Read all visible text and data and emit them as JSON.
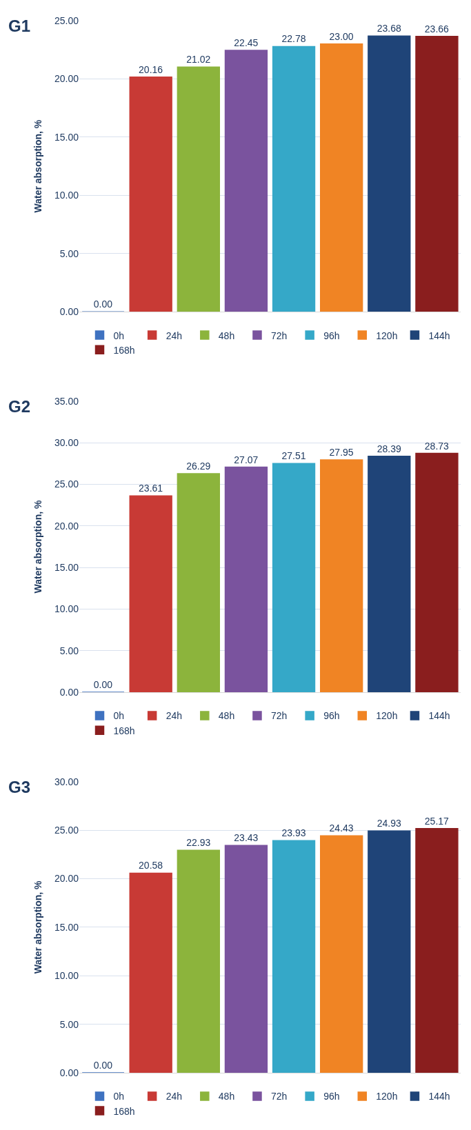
{
  "chart_data": [
    {
      "type": "bar",
      "title": "G1",
      "ylabel": "Water absorption, %",
      "categories": [
        null
      ],
      "ylim": [
        0,
        25
      ],
      "yticks": [
        {
          "value": 0,
          "label": "0.00"
        },
        {
          "value": 5,
          "label": "5.00"
        },
        {
          "value": 10,
          "label": "10.00"
        },
        {
          "value": 15,
          "label": "15.00"
        },
        {
          "value": 20,
          "label": "20.00"
        },
        {
          "value": 25,
          "label": "25.00"
        }
      ],
      "grid": "y",
      "legend": "bottom",
      "tick_labels": "y",
      "series": [
        {
          "name": "0h",
          "color": "#3f72c0",
          "values": [
            0.0
          ],
          "value_labels": [
            "0.00"
          ]
        },
        {
          "name": "24h",
          "color": "#c83a35",
          "values": [
            20.16
          ],
          "value_labels": [
            "20.16"
          ]
        },
        {
          "name": "48h",
          "color": "#8cb43c",
          "values": [
            21.02
          ],
          "value_labels": [
            "21.02"
          ]
        },
        {
          "name": "72h",
          "color": "#7a539e",
          "values": [
            22.45
          ],
          "value_labels": [
            "22.45"
          ]
        },
        {
          "name": "96h",
          "color": "#35a8c8",
          "values": [
            22.78
          ],
          "value_labels": [
            "22.78"
          ]
        },
        {
          "name": "120h",
          "color": "#f08424",
          "values": [
            23.0
          ],
          "value_labels": [
            "23.00"
          ]
        },
        {
          "name": "144h",
          "color": "#1f4478",
          "values": [
            23.68
          ],
          "value_labels": [
            "23.68"
          ]
        },
        {
          "name": "168h",
          "color": "#8a1e1e",
          "values": [
            23.66
          ],
          "value_labels": [
            "23.66"
          ]
        }
      ]
    },
    {
      "type": "bar",
      "title": "G2",
      "ylabel": "Water absorption, %",
      "categories": [
        null
      ],
      "ylim": [
        0,
        35
      ],
      "yticks": [
        {
          "value": 0,
          "label": "0.00"
        },
        {
          "value": 5,
          "label": "5.00"
        },
        {
          "value": 10,
          "label": "10.00"
        },
        {
          "value": 15,
          "label": "15.00"
        },
        {
          "value": 20,
          "label": "20.00"
        },
        {
          "value": 25,
          "label": "25.00"
        },
        {
          "value": 30,
          "label": "30.00"
        },
        {
          "value": 35,
          "label": "35.00"
        }
      ],
      "grid": "y",
      "legend": "bottom",
      "tick_labels": "y",
      "series": [
        {
          "name": "0h",
          "color": "#3f72c0",
          "values": [
            0.0
          ],
          "value_labels": [
            "0.00"
          ]
        },
        {
          "name": "24h",
          "color": "#c83a35",
          "values": [
            23.61
          ],
          "value_labels": [
            "23.61"
          ]
        },
        {
          "name": "48h",
          "color": "#8cb43c",
          "values": [
            26.29
          ],
          "value_labels": [
            "26.29"
          ]
        },
        {
          "name": "72h",
          "color": "#7a539e",
          "values": [
            27.07
          ],
          "value_labels": [
            "27.07"
          ]
        },
        {
          "name": "96h",
          "color": "#35a8c8",
          "values": [
            27.51
          ],
          "value_labels": [
            "27.51"
          ]
        },
        {
          "name": "120h",
          "color": "#f08424",
          "values": [
            27.95
          ],
          "value_labels": [
            "27.95"
          ]
        },
        {
          "name": "144h",
          "color": "#1f4478",
          "values": [
            28.39
          ],
          "value_labels": [
            "28.39"
          ]
        },
        {
          "name": "168h",
          "color": "#8a1e1e",
          "values": [
            28.73
          ],
          "value_labels": [
            "28.73"
          ]
        }
      ]
    },
    {
      "type": "bar",
      "title": "G3",
      "ylabel": "Water absorption, %",
      "categories": [
        null
      ],
      "ylim": [
        0,
        30
      ],
      "yticks": [
        {
          "value": 0,
          "label": "0.00"
        },
        {
          "value": 5,
          "label": "5.00"
        },
        {
          "value": 10,
          "label": "10.00"
        },
        {
          "value": 15,
          "label": "15.00"
        },
        {
          "value": 20,
          "label": "20.00"
        },
        {
          "value": 25,
          "label": "25.00"
        },
        {
          "value": 30,
          "label": "30.00"
        }
      ],
      "grid": "y",
      "legend": "bottom",
      "tick_labels": "y",
      "series": [
        {
          "name": "0h",
          "color": "#3f72c0",
          "values": [
            0.0
          ],
          "value_labels": [
            "0.00"
          ]
        },
        {
          "name": "24h",
          "color": "#c83a35",
          "values": [
            20.58
          ],
          "value_labels": [
            "20.58"
          ]
        },
        {
          "name": "48h",
          "color": "#8cb43c",
          "values": [
            22.93
          ],
          "value_labels": [
            "22.93"
          ]
        },
        {
          "name": "72h",
          "color": "#7a539e",
          "values": [
            23.43
          ],
          "value_labels": [
            "23.43"
          ]
        },
        {
          "name": "96h",
          "color": "#35a8c8",
          "values": [
            23.93
          ],
          "value_labels": [
            "23.93"
          ]
        },
        {
          "name": "120h",
          "color": "#f08424",
          "values": [
            24.43
          ],
          "value_labels": [
            "24.43"
          ]
        },
        {
          "name": "144h",
          "color": "#1f4478",
          "values": [
            24.93
          ],
          "value_labels": [
            "24.93"
          ]
        },
        {
          "name": "168h",
          "color": "#8a1e1e",
          "values": [
            25.17
          ],
          "value_labels": [
            "25.17"
          ]
        }
      ]
    }
  ]
}
